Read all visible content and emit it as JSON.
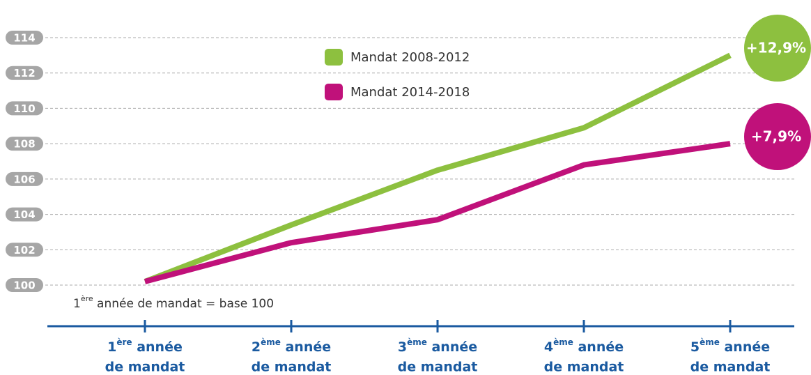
{
  "chart_data": {
    "type": "line",
    "categories": [
      [
        "1",
        "ère",
        " année",
        "de mandat"
      ],
      [
        "2",
        "ème",
        " année",
        "de mandat"
      ],
      [
        "3",
        "ème",
        " année",
        "de mandat"
      ],
      [
        "4",
        "ème",
        " année",
        "de mandat"
      ],
      [
        "5",
        "ème",
        " année",
        "de mandat"
      ]
    ],
    "series": [
      {
        "name": "Mandat 2008-2012",
        "color": "#8dc03f",
        "values": [
          100.2,
          103.4,
          106.5,
          108.9,
          113.0
        ]
      },
      {
        "name": "Mandat 2014-2018",
        "color": "#c0117a",
        "values": [
          100.2,
          102.4,
          103.7,
          106.8,
          108.0
        ]
      }
    ],
    "ylim": [
      100,
      114
    ],
    "yticks": [
      100,
      102,
      104,
      106,
      108,
      110,
      112,
      114
    ],
    "grid": true,
    "annotations": [
      "+12,9%",
      "+7,9%"
    ],
    "note": [
      "1",
      "ère",
      " année de mandat = base 100"
    ],
    "axis_color": "#1a5aa0",
    "tick_color": "#a6a6a6"
  }
}
